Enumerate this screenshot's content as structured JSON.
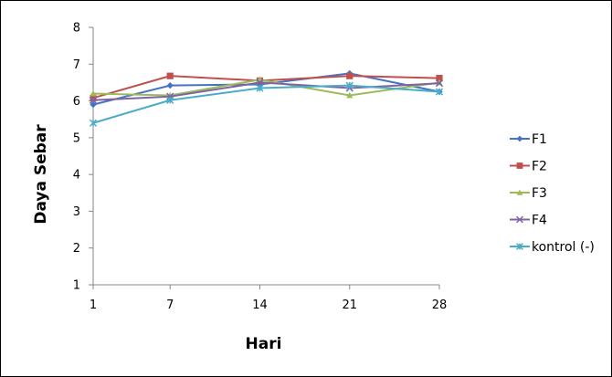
{
  "chart_data": {
    "type": "line",
    "title": "",
    "xlabel": "Hari",
    "ylabel": "Daya Sebar",
    "x": [
      1,
      7,
      14,
      21,
      28
    ],
    "x_tick_labels": [
      "1",
      "7",
      "14",
      "21",
      "28"
    ],
    "ylim": [
      1,
      8
    ],
    "y_ticks": [
      1,
      2,
      3,
      4,
      5,
      6,
      7,
      8
    ],
    "y_tick_labels": [
      "1",
      "2",
      "3",
      "4",
      "5",
      "6",
      "7",
      "8"
    ],
    "grid": false,
    "legend_position": "right",
    "series": [
      {
        "name": "F1",
        "color": "#4472c4",
        "marker": "diamond",
        "values": [
          5.9,
          6.42,
          6.45,
          6.75,
          6.25
        ]
      },
      {
        "name": "F2",
        "color": "#c0504d",
        "marker": "square",
        "values": [
          6.08,
          6.68,
          6.55,
          6.68,
          6.62
        ]
      },
      {
        "name": "F3",
        "color": "#9bbb59",
        "marker": "triangle",
        "values": [
          6.2,
          6.15,
          6.58,
          6.15,
          6.5
        ]
      },
      {
        "name": "F4",
        "color": "#8064a2",
        "marker": "x",
        "values": [
          6.02,
          6.12,
          6.5,
          6.35,
          6.48
        ]
      },
      {
        "name": "kontrol (-)",
        "color": "#4bacc6",
        "marker": "star",
        "values": [
          5.4,
          6.02,
          6.35,
          6.42,
          6.25
        ]
      }
    ]
  }
}
